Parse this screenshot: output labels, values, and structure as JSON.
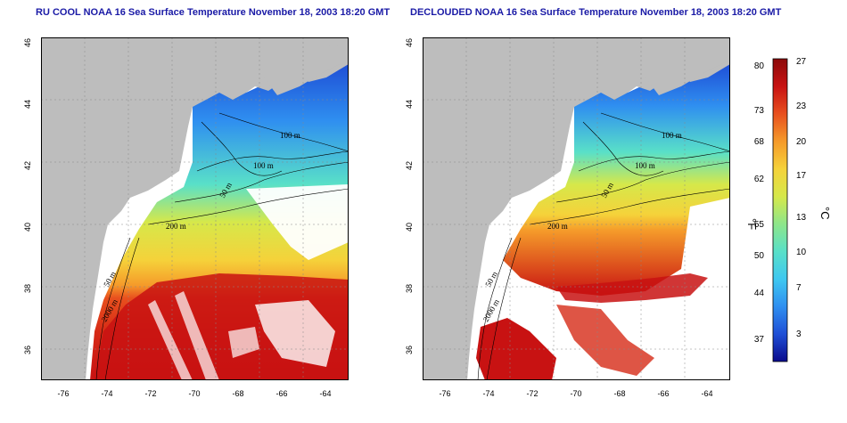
{
  "titles": {
    "left": "RU COOL NOAA 16 Sea Surface Temperature November 18, 2003 18:20 GMT",
    "right": "DECLOUDED NOAA 16 Sea Surface Temperature November 18, 2003 18:20 GMT"
  },
  "axes": {
    "x_ticks": [
      "-76",
      "-74",
      "-72",
      "-70",
      "-68",
      "-66",
      "-64"
    ],
    "y_ticks": [
      "46",
      "44",
      "42",
      "40",
      "38",
      "36"
    ]
  },
  "contours": {
    "left": [
      "100 m",
      "100 m",
      "50 m",
      "200 m",
      "50 m",
      "2000 m"
    ],
    "right": [
      "100 m",
      "100 m",
      "50 m",
      "200 m",
      "50 m",
      "2000 m"
    ]
  },
  "colorbar": {
    "fahrenheit_label": "°F",
    "celsius_label": "°C",
    "fahrenheit_ticks": [
      "80",
      "73",
      "68",
      "62",
      "55",
      "50",
      "44",
      "37"
    ],
    "celsius_ticks": [
      "27",
      "23",
      "20",
      "17",
      "13",
      "10",
      "7",
      "3"
    ],
    "colors": [
      "#0a0a8c",
      "#1f4fd6",
      "#2f8ff0",
      "#3ec8f0",
      "#59e0c8",
      "#8ee68a",
      "#d6e84a",
      "#f5d23a",
      "#f59a2a",
      "#e8501e",
      "#c81212",
      "#8c0a0a"
    ]
  },
  "map_colors": {
    "land": "#bdbdbd",
    "no_data": "#ffffff"
  }
}
